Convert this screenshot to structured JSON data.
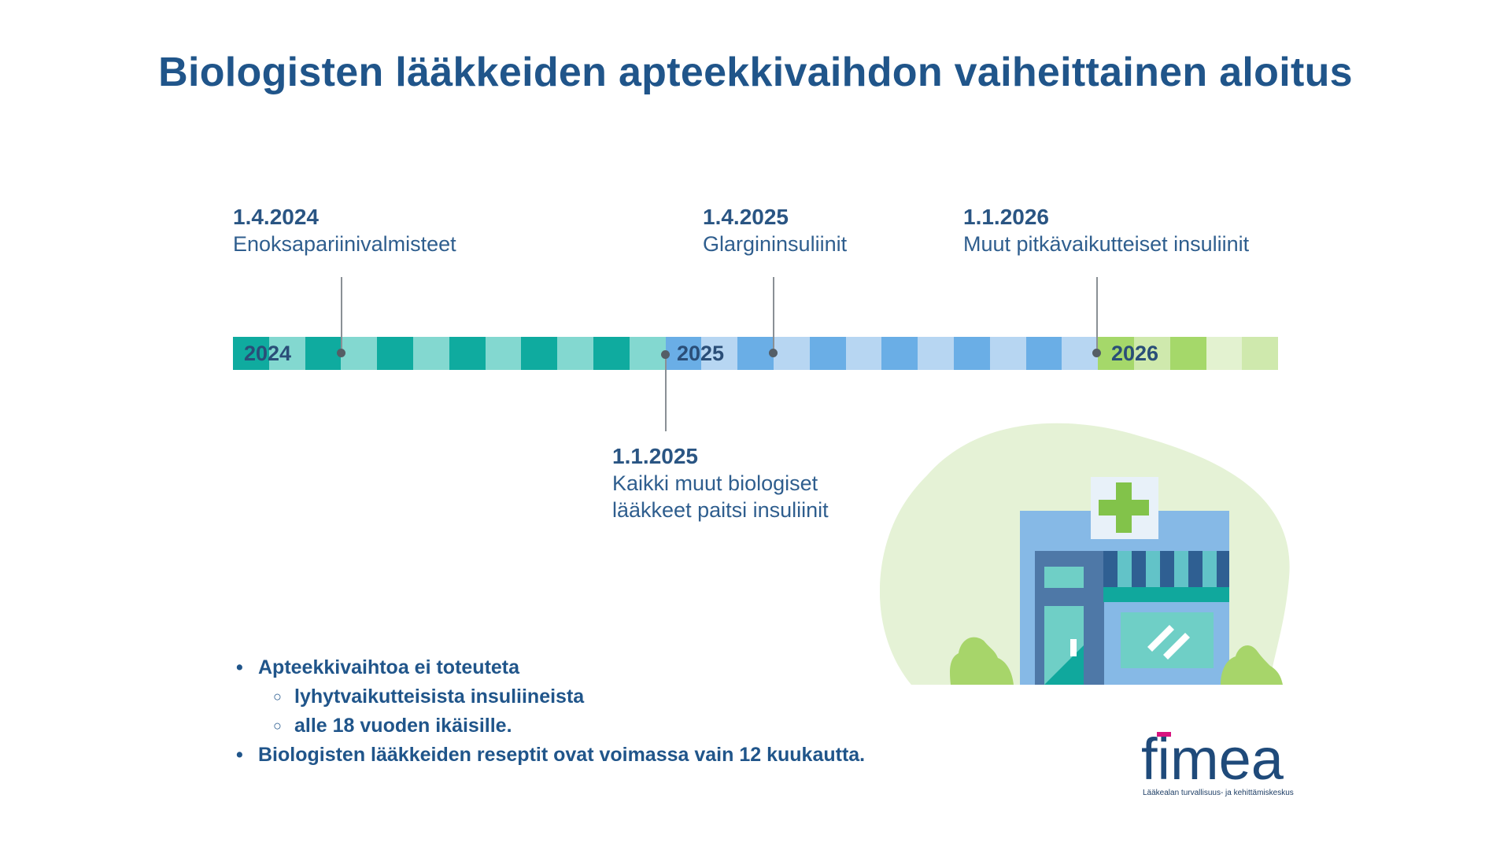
{
  "title": "Biologisten lääkkeiden apteekkivaihdon vaiheittainen aloitus",
  "timeline": {
    "years": [
      "2024",
      "2025",
      "2026"
    ],
    "events": [
      {
        "date": "1.4.2024",
        "desc": [
          "Enoksapariinivalmisteet"
        ]
      },
      {
        "date": "1.4.2025",
        "desc": [
          "Glargininsuliinit"
        ]
      },
      {
        "date": "1.1.2026",
        "desc": [
          "Muut pitkävaikutteiset insuliinit"
        ]
      },
      {
        "date": "1.1.2025",
        "desc": [
          "Kaikki muut biologiset",
          "lääkkeet paitsi insuliinit"
        ]
      }
    ]
  },
  "colors": {
    "title": "#20558a",
    "seg2024": [
      "#0fab9f",
      "#83d8d0"
    ],
    "seg2025": [
      "#6aaee6",
      "#b7d6f2"
    ],
    "seg2026": [
      "#a5d86a",
      "#cfe9ad",
      "#e3f2d0"
    ]
  },
  "bullets": [
    {
      "level": 1,
      "text": "Apteekkivaihtoa ei toteuteta"
    },
    {
      "level": 2,
      "text": "lyhytvaikutteisista insuliineista"
    },
    {
      "level": 2,
      "text": "alle 18 vuoden ikäisille."
    },
    {
      "level": 1,
      "text": "Biologisten lääkkeiden reseptit ovat voimassa vain 12 kuukautta."
    }
  ],
  "logo": {
    "name": "fimea",
    "tagline": "Lääkealan turvallisuus- ja kehittämiskeskus"
  },
  "illustration": {
    "icon": "pharmacy-building-icon"
  }
}
